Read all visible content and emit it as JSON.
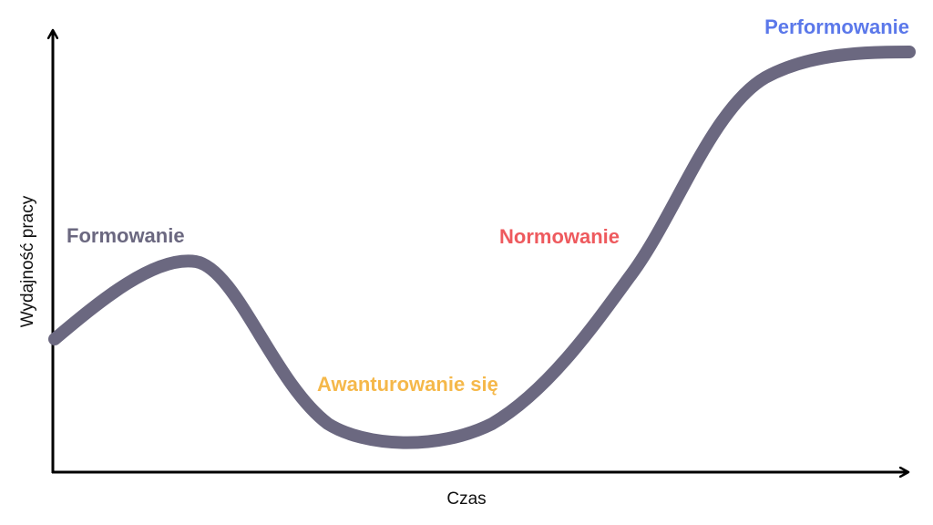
{
  "axes": {
    "y_label": "Wydajność pracy",
    "x_label": "Czas"
  },
  "stages": [
    {
      "label": "Formowanie",
      "color": "#6b6880"
    },
    {
      "label": "Awanturowanie się",
      "color": "#f5b84a"
    },
    {
      "label": "Normowanie",
      "color": "#ee5a5e"
    },
    {
      "label": "Performowanie",
      "color": "#5b78ea"
    }
  ]
}
